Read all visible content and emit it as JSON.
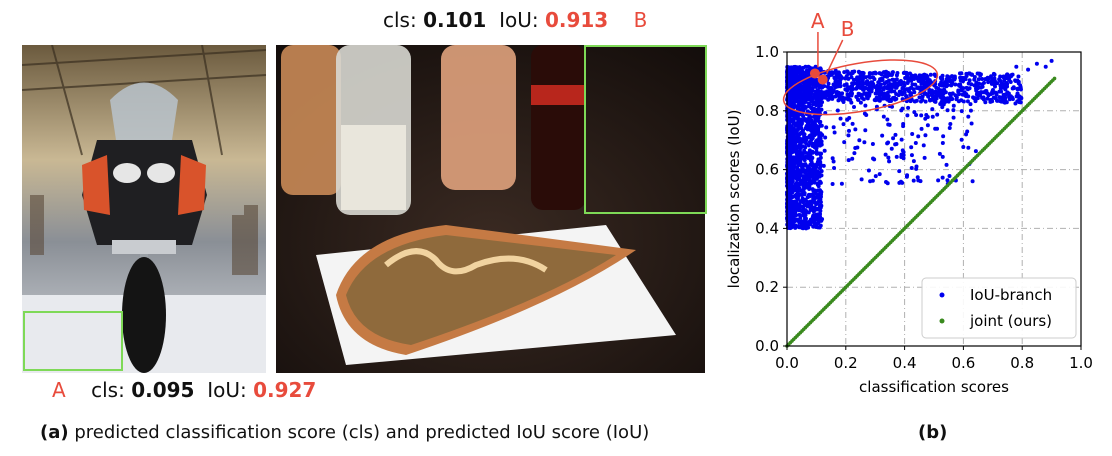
{
  "annotation_top": {
    "cls_label": "cls:",
    "cls_value": "0.101",
    "iou_label": "IoU:",
    "iou_value": "0.913",
    "marker": "B"
  },
  "annotation_bottom": {
    "marker": "A",
    "cls_label": "cls:",
    "cls_value": "0.095",
    "iou_label": "IoU:",
    "iou_value": "0.927"
  },
  "caption_a": {
    "tag": "(a)",
    "text": "predicted classification score (cls) and predicted IoU score (IoU)"
  },
  "caption_b": "(b)",
  "colors": {
    "accent_red": "#e84b3c",
    "box_green": "#7ed957",
    "iou_blue": "#0000ee",
    "joint_green": "#3a8a1e"
  },
  "chart_data": {
    "type": "scatter",
    "xlabel": "classification scores",
    "ylabel": "localization scores (IoU)",
    "xlim": [
      0.0,
      1.0
    ],
    "ylim": [
      0.0,
      1.0
    ],
    "xticks": [
      "0.0",
      "0.2",
      "0.4",
      "0.6",
      "0.8",
      "1.0"
    ],
    "yticks": [
      "0.0",
      "0.2",
      "0.4",
      "0.6",
      "0.8",
      "1.0"
    ],
    "grid": true,
    "legend_position": "bottom-right",
    "series": [
      {
        "name": "IoU-branch",
        "color": "#0000ee",
        "description_shape": "dense cloud: x 0-0.9, y 0.38-0.97, concentrated at low x and y 0.85-0.95"
      },
      {
        "name": "joint (ours)",
        "color": "#3a8a1e",
        "x": [
          0.0,
          0.91
        ],
        "y": [
          0.0,
          0.91
        ]
      }
    ],
    "highlighted_points": [
      {
        "label": "A",
        "x": 0.095,
        "y": 0.927
      },
      {
        "label": "B",
        "x": 0.101,
        "y": 0.913
      }
    ]
  }
}
